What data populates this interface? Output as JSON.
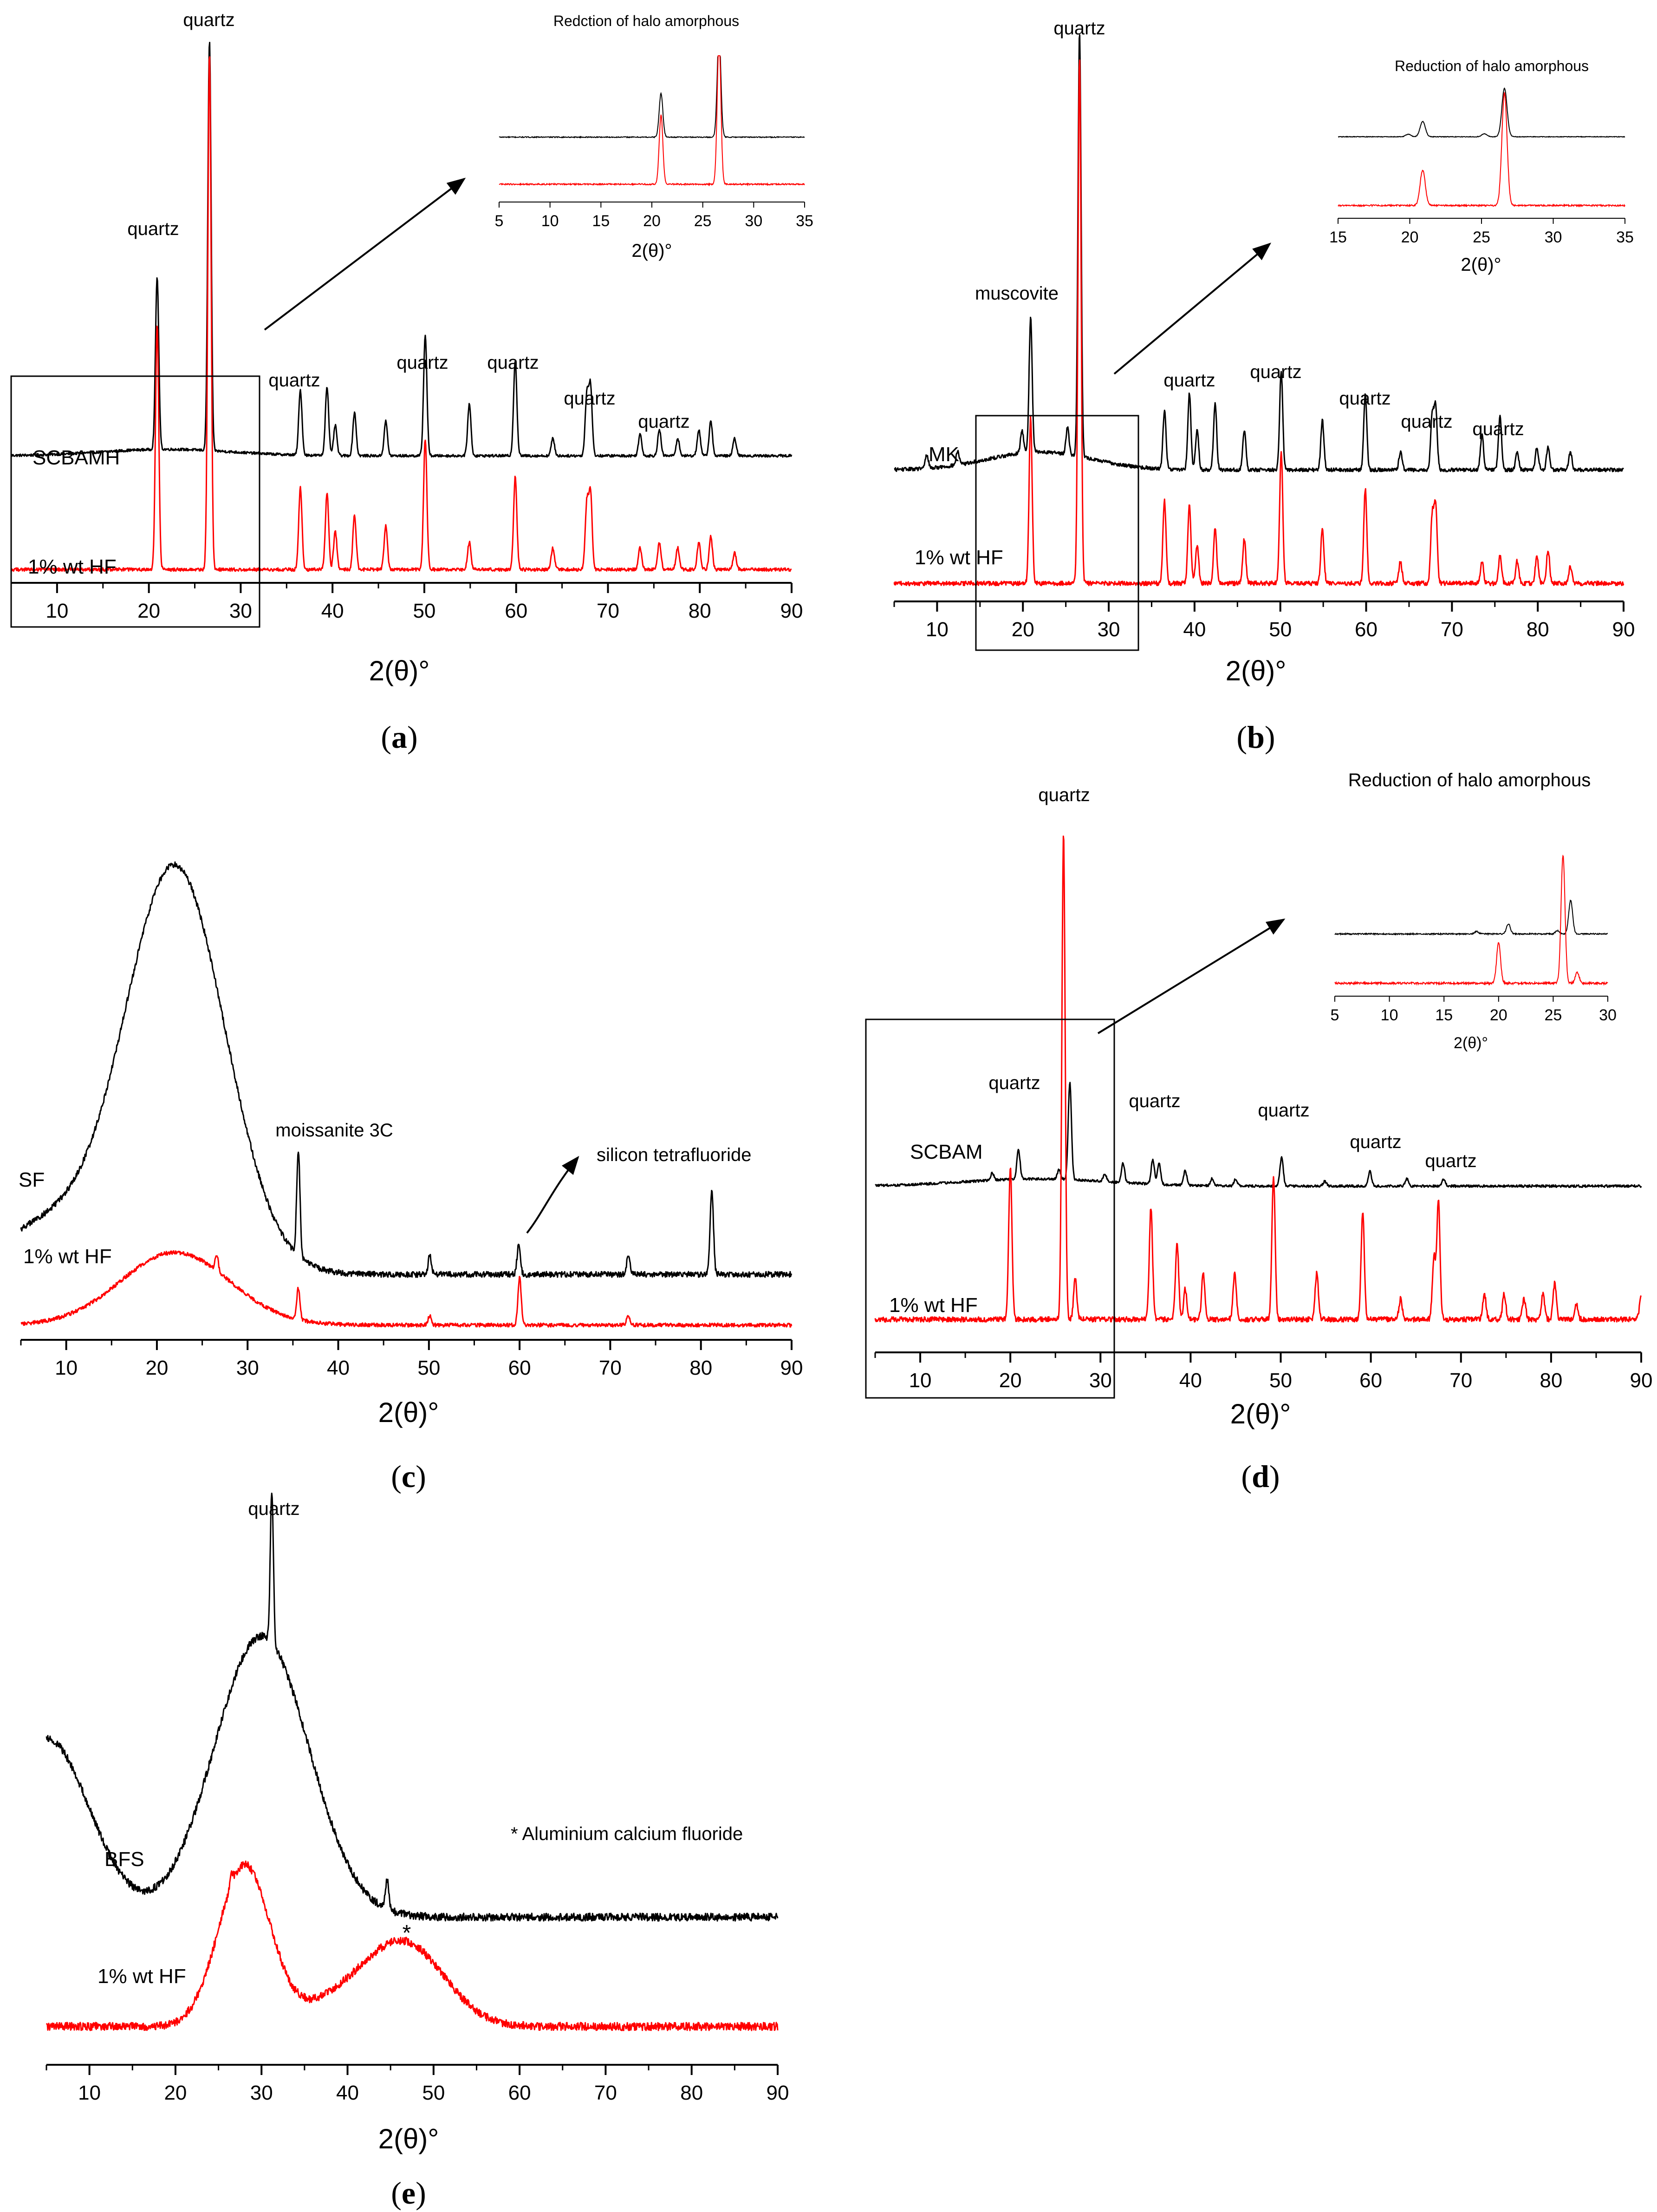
{
  "colors": {
    "raw": "#000000",
    "treated": "#ff0000",
    "axis": "#000000"
  },
  "axis_label": "2(θ)°",
  "caption_parts": {
    "open": "(",
    "close": ")"
  },
  "chart_data": [
    {
      "id": "a",
      "type": "line",
      "title": "",
      "xlabel": "2(θ)°",
      "ylabel": "",
      "xlim": [
        5,
        90
      ],
      "xticks": [
        10,
        20,
        30,
        40,
        50,
        60,
        70,
        80,
        90
      ],
      "series": [
        {
          "name": "SCBAMH",
          "color": "#000000",
          "baseline": 0.02,
          "peaks": [
            [
              20.9,
              0.4
            ],
            [
              26.6,
              0.95
            ],
            [
              36.5,
              0.15
            ],
            [
              39.4,
              0.16
            ],
            [
              40.3,
              0.07
            ],
            [
              42.4,
              0.1
            ],
            [
              45.8,
              0.08
            ],
            [
              50.1,
              0.28
            ],
            [
              54.9,
              0.12
            ],
            [
              59.9,
              0.22
            ],
            [
              64.0,
              0.04
            ],
            [
              67.7,
              0.14
            ],
            [
              68.1,
              0.16
            ],
            [
              73.5,
              0.05
            ],
            [
              75.6,
              0.06
            ],
            [
              77.6,
              0.04
            ],
            [
              79.9,
              0.06
            ],
            [
              81.2,
              0.08
            ],
            [
              83.8,
              0.04
            ]
          ]
        },
        {
          "name": "1% wt HF",
          "color": "#ff0000",
          "baseline": 0.01,
          "peaks": [
            [
              20.9,
              0.45
            ],
            [
              26.6,
              0.95
            ],
            [
              36.5,
              0.15
            ],
            [
              39.4,
              0.14
            ],
            [
              40.3,
              0.07
            ],
            [
              42.4,
              0.1
            ],
            [
              45.8,
              0.08
            ],
            [
              50.1,
              0.24
            ],
            [
              54.9,
              0.05
            ],
            [
              59.9,
              0.17
            ],
            [
              64.0,
              0.04
            ],
            [
              67.7,
              0.12
            ],
            [
              68.1,
              0.14
            ],
            [
              73.5,
              0.04
            ],
            [
              75.6,
              0.05
            ],
            [
              77.6,
              0.04
            ],
            [
              79.9,
              0.05
            ],
            [
              81.2,
              0.06
            ],
            [
              83.8,
              0.03
            ]
          ]
        }
      ],
      "annotations": [
        "quartz",
        "quartz",
        "quartz",
        "quartz",
        "quartz",
        "quartz",
        "quartz"
      ],
      "inset": {
        "title": "Redction of halo amorphous",
        "xlim": [
          5,
          35
        ],
        "xticks": [
          5,
          10,
          15,
          20,
          25,
          30,
          35
        ],
        "xlabel": "2(θ)°"
      }
    },
    {
      "id": "b",
      "type": "line",
      "title": "",
      "xlabel": "2(θ)°",
      "ylabel": "",
      "xlim": [
        5,
        90
      ],
      "xticks": [
        10,
        20,
        30,
        40,
        50,
        60,
        70,
        80,
        90
      ],
      "series": [
        {
          "name": "MK",
          "color": "#000000",
          "baseline": 0.05,
          "peaks": [
            [
              8.8,
              0.03
            ],
            [
              12.4,
              0.03
            ],
            [
              19.9,
              0.05
            ],
            [
              20.9,
              0.3
            ],
            [
              25.2,
              0.06
            ],
            [
              26.6,
              0.95
            ],
            [
              36.5,
              0.13
            ],
            [
              39.4,
              0.17
            ],
            [
              40.3,
              0.09
            ],
            [
              42.4,
              0.15
            ],
            [
              45.8,
              0.09
            ],
            [
              50.1,
              0.22
            ],
            [
              54.9,
              0.11
            ],
            [
              59.9,
              0.17
            ],
            [
              64.0,
              0.04
            ],
            [
              67.7,
              0.12
            ],
            [
              68.1,
              0.14
            ],
            [
              73.5,
              0.08
            ],
            [
              75.6,
              0.12
            ],
            [
              77.6,
              0.04
            ],
            [
              79.9,
              0.05
            ],
            [
              81.2,
              0.05
            ],
            [
              83.8,
              0.04
            ]
          ]
        },
        {
          "name": "1% wt HF",
          "color": "#ff0000",
          "baseline": 0.01,
          "peaks": [
            [
              20.9,
              0.3
            ],
            [
              26.6,
              0.95
            ],
            [
              36.5,
              0.15
            ],
            [
              39.4,
              0.14
            ],
            [
              40.3,
              0.07
            ],
            [
              42.4,
              0.1
            ],
            [
              45.8,
              0.08
            ],
            [
              50.1,
              0.24
            ],
            [
              54.9,
              0.1
            ],
            [
              59.9,
              0.17
            ],
            [
              64.0,
              0.04
            ],
            [
              67.7,
              0.12
            ],
            [
              68.1,
              0.14
            ],
            [
              73.5,
              0.04
            ],
            [
              75.6,
              0.05
            ],
            [
              77.6,
              0.04
            ],
            [
              79.9,
              0.05
            ],
            [
              81.2,
              0.06
            ],
            [
              83.8,
              0.03
            ]
          ]
        }
      ],
      "annotations": [
        "quartz",
        "muscovite",
        "quartz",
        "quartz",
        "quartz",
        "quartz",
        "quartz"
      ],
      "inset": {
        "title": "Reduction of halo amorphous",
        "xlim": [
          15,
          35
        ],
        "xticks": [
          15,
          20,
          25,
          30,
          35
        ],
        "xlabel": "2(θ)°"
      }
    },
    {
      "id": "c",
      "type": "line",
      "title": "",
      "xlabel": "2(θ)°",
      "ylabel": "",
      "xlim": [
        5,
        90
      ],
      "xticks": [
        10,
        20,
        30,
        40,
        50,
        60,
        70,
        80,
        90
      ],
      "series": [
        {
          "name": "SF",
          "color": "#000000",
          "baseline": 0.03,
          "humps": [
            [
              22,
              0.85,
              5.5
            ],
            [
              8,
              0.1,
              6
            ]
          ],
          "peaks": [
            [
              35.6,
              0.22
            ],
            [
              50.1,
              0.04
            ],
            [
              59.9,
              0.06
            ],
            [
              72.0,
              0.04
            ],
            [
              81.2,
              0.18
            ]
          ]
        },
        {
          "name": "1% wt HF",
          "color": "#ff0000",
          "baseline": 0.01,
          "humps": [
            [
              22,
              0.23,
              6
            ]
          ],
          "peaks": [
            [
              26.6,
              0.05
            ],
            [
              35.6,
              0.1
            ],
            [
              50.1,
              0.03
            ],
            [
              60.0,
              0.15
            ],
            [
              72.0,
              0.03
            ]
          ]
        }
      ],
      "annotations": [
        "moissanite 3C",
        "silicon tetrafluoride"
      ]
    },
    {
      "id": "d",
      "type": "line",
      "title": "",
      "xlabel": "2(θ)°",
      "ylabel": "",
      "xlim": [
        5,
        90
      ],
      "xticks": [
        10,
        20,
        30,
        40,
        50,
        60,
        70,
        80,
        90
      ],
      "series": [
        {
          "name": "SCBAM",
          "color": "#000000",
          "baseline": 0.05,
          "peaks": [
            [
              18.0,
              0.03
            ],
            [
              20.9,
              0.12
            ],
            [
              25.4,
              0.04
            ],
            [
              26.6,
              0.4
            ],
            [
              30.5,
              0.03
            ],
            [
              32.5,
              0.08
            ],
            [
              35.8,
              0.1
            ],
            [
              36.5,
              0.09
            ],
            [
              39.4,
              0.06
            ],
            [
              42.4,
              0.03
            ],
            [
              45.0,
              0.03
            ],
            [
              50.1,
              0.12
            ],
            [
              54.9,
              0.02
            ],
            [
              59.9,
              0.06
            ],
            [
              64.0,
              0.03
            ],
            [
              68.1,
              0.03
            ]
          ]
        },
        {
          "name": "1% wt HF",
          "color": "#ff0000",
          "baseline": 0.01,
          "peaks": [
            [
              20.0,
              0.3
            ],
            [
              25.9,
              0.95
            ],
            [
              27.2,
              0.08
            ],
            [
              35.6,
              0.22
            ],
            [
              38.5,
              0.15
            ],
            [
              39.4,
              0.06
            ],
            [
              41.4,
              0.09
            ],
            [
              44.9,
              0.09
            ],
            [
              49.2,
              0.28
            ],
            [
              54.0,
              0.09
            ],
            [
              59.1,
              0.21
            ],
            [
              63.3,
              0.04
            ],
            [
              67.0,
              0.12
            ],
            [
              67.5,
              0.23
            ],
            [
              72.6,
              0.05
            ],
            [
              74.8,
              0.05
            ],
            [
              77.0,
              0.04
            ],
            [
              79.1,
              0.05
            ],
            [
              80.4,
              0.07
            ],
            [
              82.8,
              0.03
            ],
            [
              90.0,
              0.05
            ]
          ]
        }
      ],
      "annotations": [
        "quartz",
        "quartz",
        "quartz",
        "quartz",
        "quartz",
        "quartz"
      ],
      "inset": {
        "title": "Reduction of halo amorphous",
        "xlim": [
          5,
          30
        ],
        "xticks": [
          5,
          10,
          15,
          20,
          25,
          30
        ],
        "xlabel": "2(θ)°"
      }
    },
    {
      "id": "e",
      "type": "line",
      "title": "",
      "xlabel": "2(θ)°",
      "ylabel": "",
      "xlim": [
        5,
        90
      ],
      "xticks": [
        10,
        20,
        30,
        40,
        50,
        60,
        70,
        80,
        90
      ],
      "series": [
        {
          "name": "BFS",
          "color": "#000000",
          "baseline": 0.02,
          "humps": [
            [
              30,
              0.55,
              5.5
            ],
            [
              5,
              0.35,
              5
            ]
          ],
          "peaks": [
            [
              31.2,
              0.3
            ],
            [
              44.6,
              0.06
            ]
          ]
        },
        {
          "name": "1% wt HF",
          "color": "#ff0000",
          "baseline": 0.01,
          "humps": [
            [
              28,
              0.3,
              3
            ],
            [
              47,
              0.14,
              4.5
            ],
            [
              40,
              0.05,
              5
            ]
          ],
          "peaks": [
            [
              26.5,
              0.02
            ]
          ]
        }
      ],
      "annotations": [
        "quartz",
        "* Aluminium calcium fluoride",
        "*"
      ]
    }
  ]
}
